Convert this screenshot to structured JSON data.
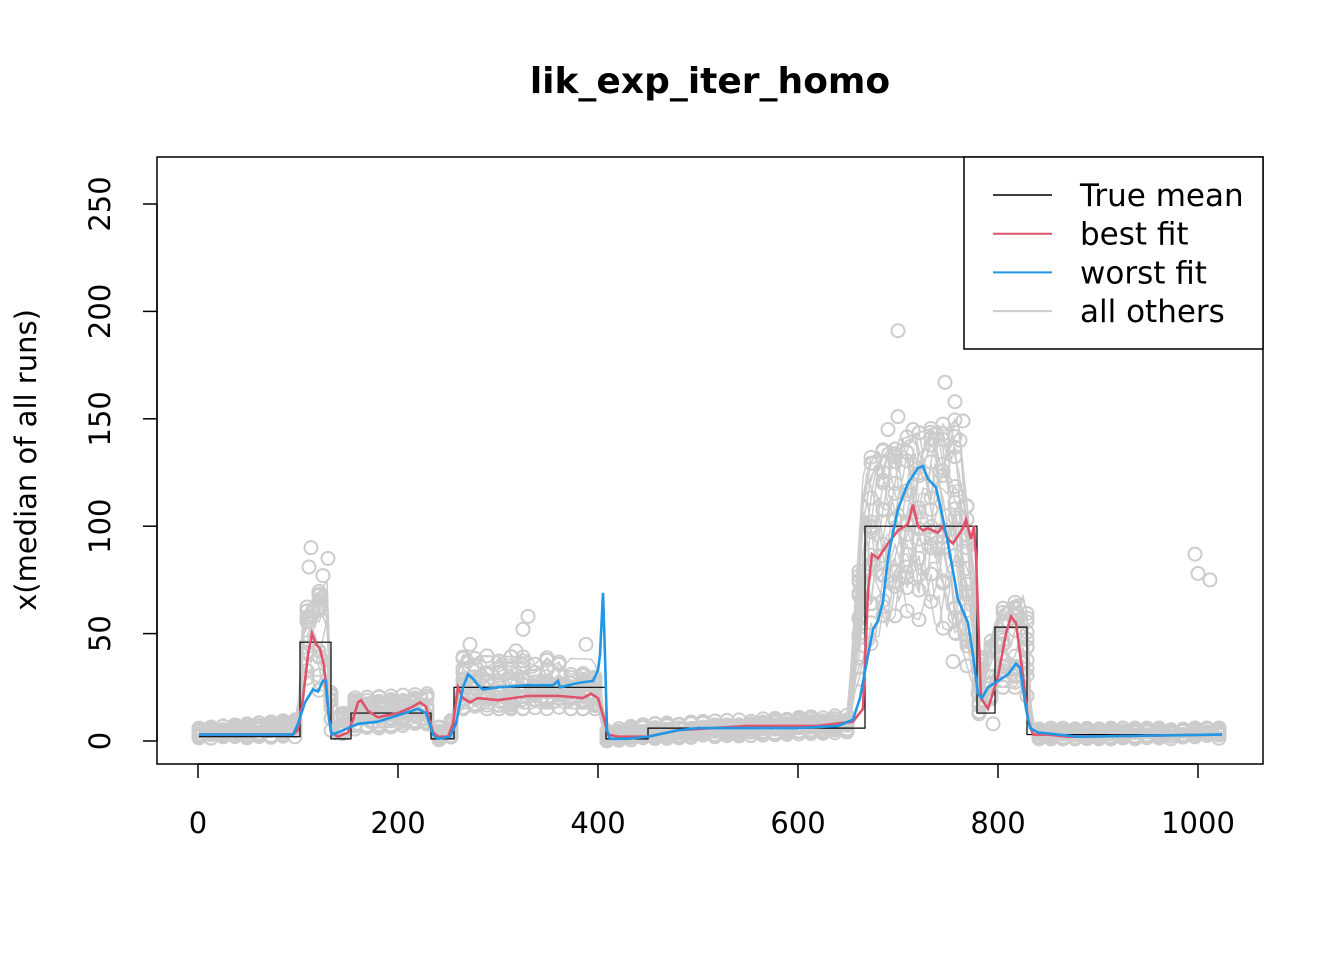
{
  "chart_data": {
    "type": "line",
    "title": "lik_exp_iter_homo",
    "xlabel": "",
    "ylabel": "x(median of all runs)",
    "xlim": [
      -40,
      1065
    ],
    "ylim": [
      -10,
      272
    ],
    "x_ticks": [
      0,
      200,
      400,
      600,
      800,
      1000
    ],
    "y_ticks": [
      0,
      50,
      100,
      150,
      200,
      250
    ],
    "grid": false,
    "legend": {
      "placement": "top-right",
      "entries": [
        {
          "label": "True mean",
          "color": "#000000"
        },
        {
          "label": "best fit",
          "color": "#DF536B"
        },
        {
          "label": "worst fit",
          "color": "#2297E6"
        },
        {
          "label": "all others",
          "color": "#CCCCCC"
        }
      ]
    },
    "series": [
      {
        "name": "True mean",
        "color": "#000000",
        "step": true,
        "points": [
          [
            1,
            2
          ],
          [
            102,
            46
          ],
          [
            133,
            1
          ],
          [
            153,
            13
          ],
          [
            233,
            1
          ],
          [
            256,
            25
          ],
          [
            408,
            1
          ],
          [
            450,
            6
          ],
          [
            667,
            100
          ],
          [
            779,
            13
          ],
          [
            797,
            53
          ],
          [
            829,
            3
          ],
          [
            1024,
            3
          ]
        ]
      },
      {
        "name": "best fit",
        "color": "#DF536B",
        "points": [
          [
            1,
            3
          ],
          [
            95,
            3
          ],
          [
            100,
            5
          ],
          [
            105,
            20
          ],
          [
            110,
            40
          ],
          [
            114,
            50
          ],
          [
            118,
            45
          ],
          [
            122,
            43
          ],
          [
            126,
            35
          ],
          [
            130,
            15
          ],
          [
            133,
            4
          ],
          [
            140,
            2
          ],
          [
            150,
            4
          ],
          [
            155,
            10
          ],
          [
            160,
            18
          ],
          [
            163,
            19
          ],
          [
            170,
            14
          ],
          [
            180,
            11
          ],
          [
            200,
            13
          ],
          [
            215,
            16
          ],
          [
            222,
            18
          ],
          [
            228,
            16
          ],
          [
            235,
            4
          ],
          [
            240,
            2
          ],
          [
            250,
            2
          ],
          [
            255,
            8
          ],
          [
            260,
            25
          ],
          [
            265,
            20
          ],
          [
            272,
            18
          ],
          [
            280,
            20
          ],
          [
            300,
            19
          ],
          [
            330,
            21
          ],
          [
            360,
            21
          ],
          [
            385,
            20
          ],
          [
            393,
            22
          ],
          [
            400,
            20
          ],
          [
            405,
            12
          ],
          [
            410,
            3
          ],
          [
            420,
            2
          ],
          [
            450,
            2
          ],
          [
            480,
            5
          ],
          [
            550,
            7
          ],
          [
            620,
            7
          ],
          [
            655,
            9
          ],
          [
            665,
            15
          ],
          [
            670,
            70
          ],
          [
            674,
            87
          ],
          [
            680,
            85
          ],
          [
            690,
            92
          ],
          [
            700,
            98
          ],
          [
            710,
            101
          ],
          [
            715,
            110
          ],
          [
            720,
            100
          ],
          [
            725,
            98
          ],
          [
            730,
            99
          ],
          [
            740,
            97
          ],
          [
            745,
            100
          ],
          [
            750,
            94
          ],
          [
            755,
            92
          ],
          [
            765,
            99
          ],
          [
            768,
            103
          ],
          [
            773,
            94
          ],
          [
            776,
            100
          ],
          [
            778,
            86
          ],
          [
            783,
            20
          ],
          [
            790,
            15
          ],
          [
            800,
            30
          ],
          [
            808,
            50
          ],
          [
            813,
            58
          ],
          [
            818,
            55
          ],
          [
            825,
            30
          ],
          [
            830,
            10
          ],
          [
            835,
            3
          ],
          [
            850,
            3
          ],
          [
            870,
            2
          ],
          [
            1024,
            3
          ]
        ]
      },
      {
        "name": "worst fit",
        "color": "#2297E6",
        "points": [
          [
            1,
            3
          ],
          [
            95,
            3
          ],
          [
            100,
            8
          ],
          [
            107,
            18
          ],
          [
            115,
            24
          ],
          [
            120,
            23
          ],
          [
            125,
            28
          ],
          [
            128,
            28
          ],
          [
            131,
            10
          ],
          [
            134,
            3
          ],
          [
            140,
            4
          ],
          [
            160,
            8
          ],
          [
            180,
            9
          ],
          [
            200,
            12
          ],
          [
            220,
            15
          ],
          [
            228,
            13
          ],
          [
            235,
            3
          ],
          [
            240,
            1
          ],
          [
            252,
            2
          ],
          [
            258,
            8
          ],
          [
            265,
            25
          ],
          [
            270,
            31
          ],
          [
            275,
            29
          ],
          [
            280,
            26
          ],
          [
            285,
            24
          ],
          [
            300,
            25
          ],
          [
            330,
            26
          ],
          [
            355,
            26
          ],
          [
            360,
            28
          ],
          [
            362,
            25
          ],
          [
            380,
            27
          ],
          [
            395,
            28
          ],
          [
            400,
            33
          ],
          [
            402,
            40
          ],
          [
            405,
            69
          ],
          [
            407,
            40
          ],
          [
            409,
            5
          ],
          [
            412,
            1
          ],
          [
            430,
            1
          ],
          [
            450,
            2
          ],
          [
            480,
            5
          ],
          [
            500,
            6
          ],
          [
            550,
            6
          ],
          [
            600,
            6
          ],
          [
            640,
            7
          ],
          [
            655,
            10
          ],
          [
            662,
            20
          ],
          [
            668,
            35
          ],
          [
            675,
            52
          ],
          [
            680,
            56
          ],
          [
            685,
            65
          ],
          [
            690,
            85
          ],
          [
            695,
            97
          ],
          [
            700,
            108
          ],
          [
            710,
            120
          ],
          [
            720,
            127
          ],
          [
            725,
            128
          ],
          [
            730,
            122
          ],
          [
            738,
            118
          ],
          [
            742,
            110
          ],
          [
            750,
            92
          ],
          [
            760,
            66
          ],
          [
            770,
            55
          ],
          [
            775,
            40
          ],
          [
            780,
            22
          ],
          [
            784,
            20
          ],
          [
            790,
            25
          ],
          [
            800,
            28
          ],
          [
            810,
            31
          ],
          [
            818,
            36
          ],
          [
            822,
            34
          ],
          [
            828,
            15
          ],
          [
            832,
            6
          ],
          [
            840,
            4
          ],
          [
            860,
            3
          ],
          [
            880,
            2
          ],
          [
            1024,
            3
          ]
        ]
      },
      {
        "name": "all others",
        "color": "#CCCCCC",
        "envelope": [
          [
            1,
            1,
            6
          ],
          [
            100,
            2,
            10
          ],
          [
            105,
            30,
            60
          ],
          [
            130,
            20,
            75
          ],
          [
            134,
            0,
            5
          ],
          [
            155,
            5,
            20
          ],
          [
            230,
            8,
            22
          ],
          [
            235,
            0,
            5
          ],
          [
            255,
            2,
            10
          ],
          [
            262,
            15,
            40
          ],
          [
            400,
            15,
            38
          ],
          [
            408,
            0,
            5
          ],
          [
            450,
            1,
            8
          ],
          [
            650,
            4,
            12
          ],
          [
            666,
            40,
            130
          ],
          [
            700,
            60,
            140
          ],
          [
            760,
            50,
            150
          ],
          [
            778,
            20,
            70
          ],
          [
            782,
            10,
            30
          ],
          [
            800,
            25,
            60
          ],
          [
            828,
            25,
            70
          ],
          [
            834,
            1,
            6
          ],
          [
            1024,
            1,
            6
          ]
        ],
        "outlier_points": [
          [
            113,
            90
          ],
          [
            111,
            81
          ],
          [
            130,
            85
          ],
          [
            125,
            77
          ],
          [
            330,
            58
          ],
          [
            325,
            52
          ],
          [
            318,
            42
          ],
          [
            388,
            45
          ],
          [
            272,
            45
          ],
          [
            700,
            191
          ],
          [
            747,
            167
          ],
          [
            757,
            158
          ],
          [
            700,
            151
          ],
          [
            715,
            145
          ],
          [
            762,
            140
          ],
          [
            765,
            149
          ],
          [
            690,
            145
          ],
          [
            997,
            87
          ],
          [
            1000,
            78
          ],
          [
            1012,
            75
          ],
          [
            758,
            50
          ],
          [
            755,
            37
          ],
          [
            780,
            22
          ],
          [
            795,
            8
          ]
        ]
      }
    ]
  }
}
